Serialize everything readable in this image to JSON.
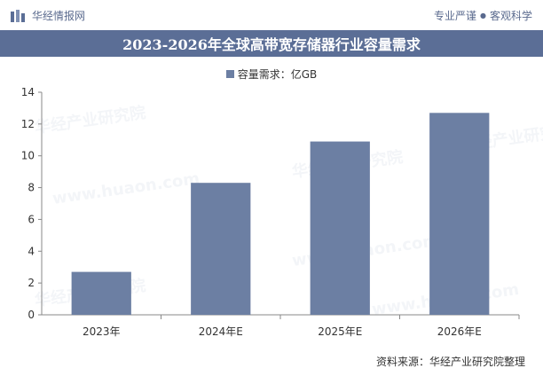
{
  "header": {
    "logo_text": "华经情报网",
    "tagline_left": "专业严谨",
    "tagline_dot": "●",
    "tagline_right": "客观科学"
  },
  "title": "2023-2026年全球高带宽存储器行业容量需求",
  "footer": {
    "source": "资料来源：华经产业研究院整理"
  },
  "watermark": {
    "text": "华经产业研究院",
    "url": "www.huaon.com"
  },
  "colors": {
    "bar": "#6c7fa3",
    "band": "#5b6e96",
    "axis": "#333333"
  },
  "chart_data": {
    "type": "bar",
    "categories": [
      "2023年",
      "2024年E",
      "2025年E",
      "2026年E"
    ],
    "series": [
      {
        "name": "容量需求：亿GB",
        "values": [
          2.7,
          8.3,
          10.9,
          12.7
        ]
      }
    ],
    "ylim": [
      0,
      14
    ],
    "yticks": [
      0,
      2,
      4,
      6,
      8,
      10,
      12,
      14
    ],
    "grid": false,
    "legend": "top-center"
  }
}
